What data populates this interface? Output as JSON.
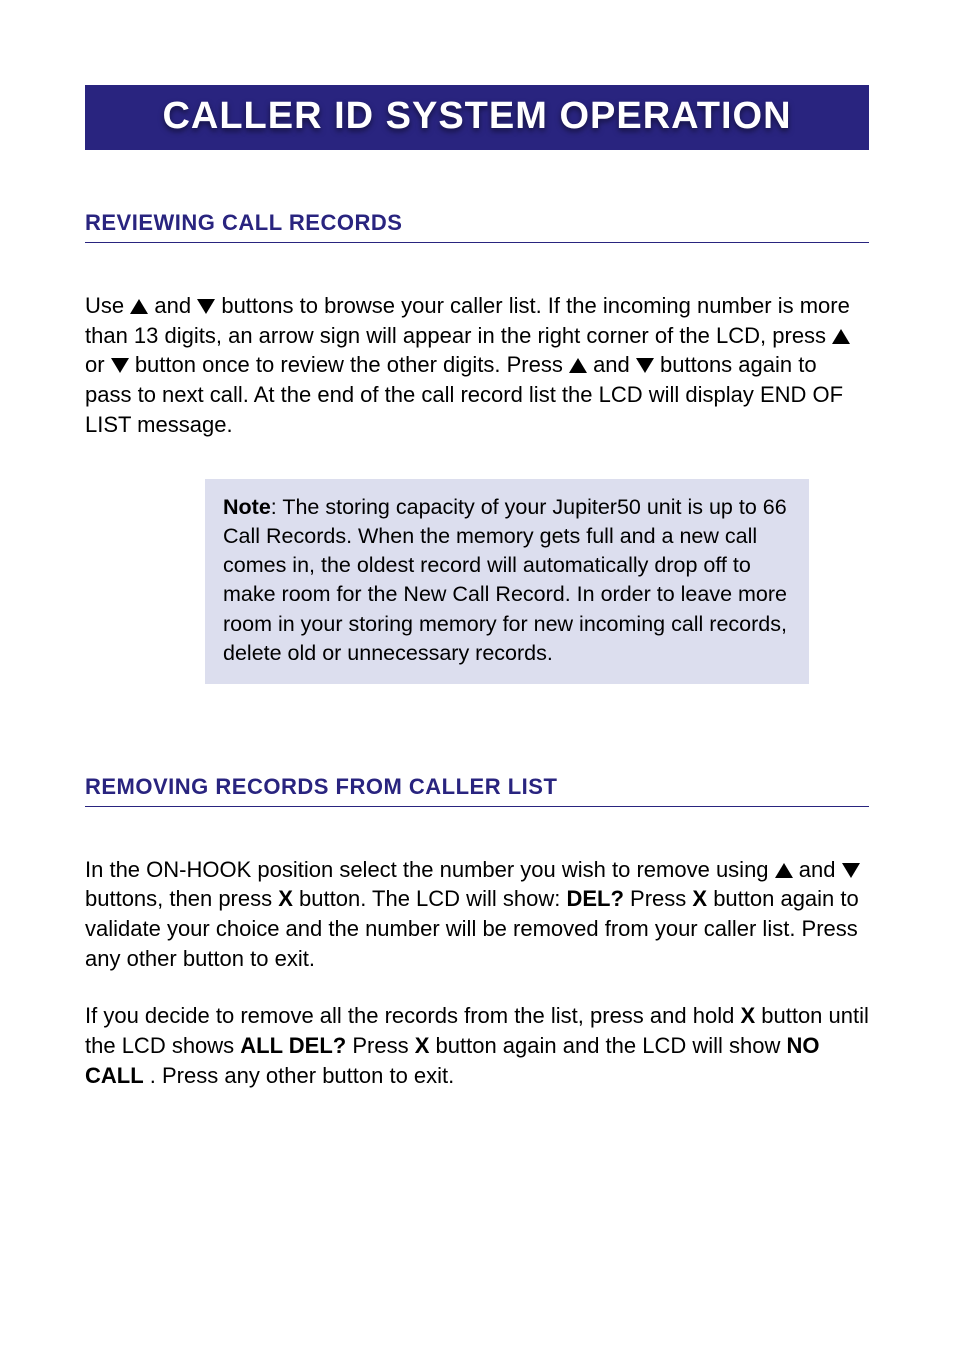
{
  "colors": {
    "title_bg": "#29247f",
    "title_text": "#ffffff",
    "heading_text": "#29247f",
    "heading_rule": "#29247f",
    "body_text": "#000000",
    "note_bg": "#dcdeee",
    "page_bg": "#ffffff"
  },
  "typography": {
    "title_fontsize": 38,
    "heading_fontsize": 22,
    "body_fontsize": 22,
    "note_fontsize": 21.5,
    "font_family": "Lucida Sans / Trebuchet-like humanist sans"
  },
  "title": "CALLER ID SYSTEM OPERATION",
  "section1": {
    "heading": "REVIEWING CALL RECORDS",
    "p1a": "Use ",
    "p1b": " and ",
    "p1c": " buttons to browse your caller list. If the incoming number is more than 13 digits, an arrow sign will appear in the right corner of the LCD, press ",
    "p1d": " or ",
    "p1e": " button once to review the other digits. Press ",
    "p1f": " and ",
    "p1g": " buttons again to pass to next call. At the end of the call record list the LCD will display END OF LIST message.",
    "note_label": "Note",
    "note_body": ": The storing capacity of your Jupiter50 unit is up to 66 Call Records. When the memory gets full and a new call comes in, the oldest record will automatically drop off to make room for the New Call Record. In order to leave more room in your storing memory for new incoming call records, delete old or unnecessary records."
  },
  "section2": {
    "heading": "REMOVING RECORDS FROM CALLER LIST",
    "p1a": "In the ON-HOOK position select the number you wish to remove using ",
    "p1b": " and ",
    "p1c": " buttons, then press ",
    "p1_x1": "X",
    "p1d": " button. The LCD will show: ",
    "p1_del": "DEL?",
    "p1e": " Press ",
    "p1_x2": "X",
    "p1f": " button again to validate your choice and the number will be removed from your caller list. Press any other button to exit.",
    "p2a": "If you decide to remove all the records from the list, press and hold ",
    "p2_x1": "X",
    "p2b": " button until the LCD shows ",
    "p2_alldel": "ALL DEL?",
    "p2c": "  Press ",
    "p2_x2": "X",
    "p2d": " button again and the LCD will show ",
    "p2_nocall": "NO CALL",
    "p2e": ". Press any other button to exit."
  }
}
